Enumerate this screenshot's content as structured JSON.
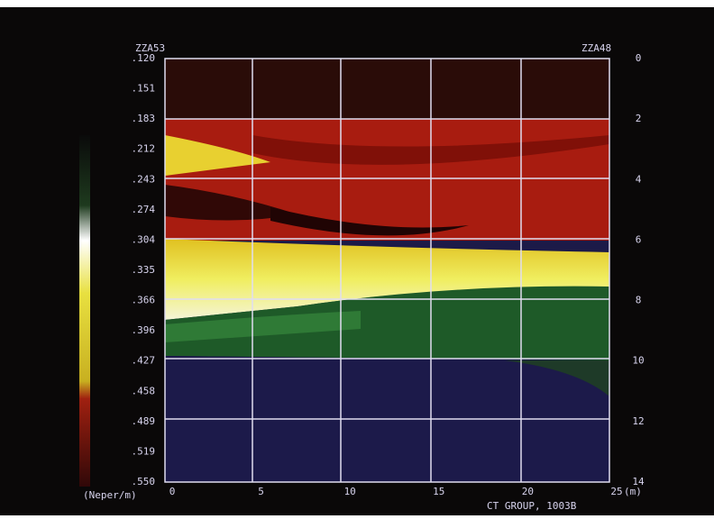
{
  "header": {
    "top_left": "ZZA53",
    "top_right": "ZZA48"
  },
  "left_axis": {
    "labels": [
      ".120",
      ".151",
      ".183",
      ".212",
      ".243",
      ".274",
      ".304",
      ".335",
      ".366",
      ".396",
      ".427",
      ".458",
      ".489",
      ".519",
      ".550"
    ],
    "unit": "(Neper/m)"
  },
  "right_axis": {
    "labels": [
      "0",
      "2",
      "4",
      "6",
      "8",
      "10",
      "12",
      "14"
    ],
    "unit": "(m)"
  },
  "bottom_axis": {
    "labels": [
      "0",
      "5",
      "10",
      "15",
      "20",
      "25"
    ]
  },
  "footer": "CT GROUP, 1003B"
}
